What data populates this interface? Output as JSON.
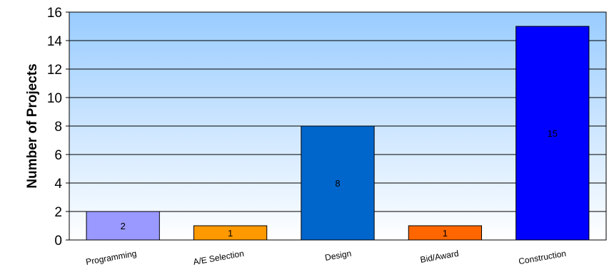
{
  "chart_data": {
    "type": "bar",
    "categories": [
      "Programming",
      "A/E Selection",
      "Design",
      "Bid/Award",
      "Construction"
    ],
    "values": [
      2,
      1,
      8,
      1,
      15
    ],
    "data_labels": [
      "2",
      "1",
      "8",
      "1",
      "15"
    ],
    "bar_colors": [
      "#9999ff",
      "#ff9900",
      "#0066cc",
      "#ff6600",
      "#0000ff"
    ],
    "ylabel": "Number of Projects",
    "ylim": [
      0,
      16
    ],
    "yticks": [
      "0",
      "2",
      "4",
      "6",
      "8",
      "10",
      "12",
      "14",
      "16"
    ],
    "grid": true,
    "legend": "none",
    "background": {
      "top": "#99ccff",
      "bottom": "#ffffff"
    }
  }
}
